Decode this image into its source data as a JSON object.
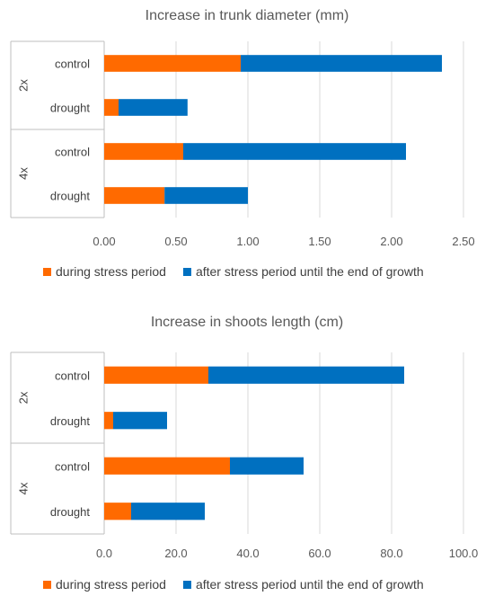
{
  "chart_data": [
    {
      "type": "bar",
      "orientation": "horizontal",
      "stacked": true,
      "title": "Increase in trunk diameter (mm)",
      "groups": [
        {
          "label": "2x",
          "categories": [
            "control",
            "drought"
          ]
        },
        {
          "label": "4x",
          "categories": [
            "control",
            "drought"
          ]
        }
      ],
      "series": [
        {
          "name": "during stress period",
          "color": "#FF6A00",
          "values": [
            0.95,
            0.1,
            0.55,
            0.42
          ]
        },
        {
          "name": "after stress period until the end of growth",
          "color": "#0070C0",
          "values": [
            1.4,
            0.48,
            1.55,
            0.58
          ]
        }
      ],
      "xlim": [
        0,
        2.5
      ],
      "xticks": [
        "0.00",
        "0.50",
        "1.00",
        "1.50",
        "2.00",
        "2.50"
      ],
      "grid": true,
      "legend": "bottom"
    },
    {
      "type": "bar",
      "orientation": "horizontal",
      "stacked": true,
      "title": "Increase in shoots length (cm)",
      "groups": [
        {
          "label": "2x",
          "categories": [
            "control",
            "drought"
          ]
        },
        {
          "label": "4x",
          "categories": [
            "control",
            "drought"
          ]
        }
      ],
      "series": [
        {
          "name": "during stress period",
          "color": "#FF6A00",
          "values": [
            29.0,
            2.5,
            35.0,
            7.5
          ]
        },
        {
          "name": "after stress period until the end of growth",
          "color": "#0070C0",
          "values": [
            54.5,
            15.0,
            20.5,
            20.5
          ]
        }
      ],
      "xlim": [
        0,
        100
      ],
      "xticks": [
        "0.0",
        "20.0",
        "40.0",
        "60.0",
        "80.0",
        "100.0"
      ],
      "grid": true,
      "legend": "bottom"
    }
  ]
}
